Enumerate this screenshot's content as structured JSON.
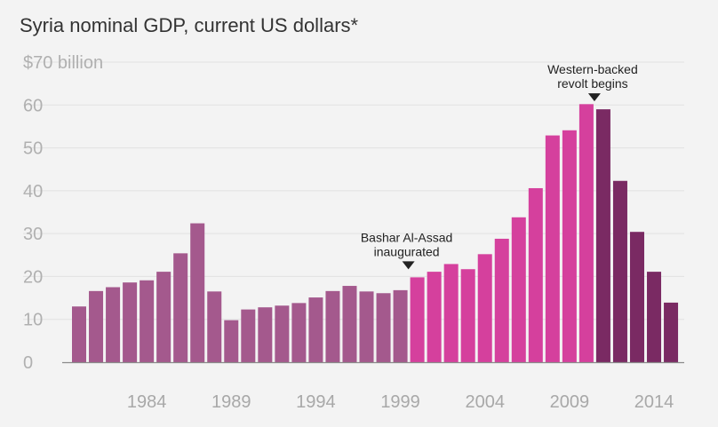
{
  "chart_data": {
    "type": "bar",
    "title": "Syria nominal GDP, current US dollars*",
    "xlabel": "",
    "ylabel": "",
    "ylim": [
      0,
      70
    ],
    "grid": true,
    "y_ticks": [
      {
        "value": 70,
        "label": "$70 billion"
      },
      {
        "value": 60,
        "label": "60"
      },
      {
        "value": 50,
        "label": "50"
      },
      {
        "value": 40,
        "label": "40"
      },
      {
        "value": 30,
        "label": "30"
      },
      {
        "value": 20,
        "label": "20"
      },
      {
        "value": 10,
        "label": "10"
      },
      {
        "value": 0,
        "label": "0"
      }
    ],
    "x_ticks": [
      {
        "year": 1984,
        "label": "1984"
      },
      {
        "year": 1989,
        "label": "1989"
      },
      {
        "year": 1994,
        "label": "1994"
      },
      {
        "year": 1999,
        "label": "1999"
      },
      {
        "year": 2004,
        "label": "2004"
      },
      {
        "year": 2009,
        "label": "2009"
      },
      {
        "year": 2014,
        "label": "2014"
      }
    ],
    "years": [
      1980,
      1981,
      1982,
      1983,
      1984,
      1985,
      1986,
      1987,
      1988,
      1989,
      1990,
      1991,
      1992,
      1993,
      1994,
      1995,
      1996,
      1997,
      1998,
      1999,
      2000,
      2001,
      2002,
      2003,
      2004,
      2005,
      2006,
      2007,
      2008,
      2009,
      2010,
      2011,
      2012,
      2013,
      2014,
      2015
    ],
    "values": [
      13.0,
      16.6,
      17.5,
      18.6,
      19.1,
      21.1,
      25.4,
      32.4,
      16.5,
      9.8,
      12.3,
      12.8,
      13.2,
      13.8,
      15.1,
      16.6,
      17.8,
      16.5,
      16.1,
      16.8,
      19.8,
      21.1,
      22.9,
      21.7,
      25.2,
      28.8,
      33.8,
      40.6,
      52.9,
      54.1,
      60.2,
      59.0,
      42.3,
      30.4,
      21.1,
      13.9
    ],
    "bar_colors": [
      {
        "from": 1980,
        "to": 1999,
        "color": "#a4598d"
      },
      {
        "from": 2000,
        "to": 2010,
        "color": "#d5409d"
      },
      {
        "from": 2011,
        "to": 2015,
        "color": "#7a2a63"
      }
    ],
    "annotations": [
      {
        "year": 2000,
        "lines": [
          "Bashar Al-Assad",
          "inaugurated"
        ]
      },
      {
        "year": 2011,
        "lines": [
          "Western-backed",
          "revolt begins"
        ]
      }
    ]
  }
}
